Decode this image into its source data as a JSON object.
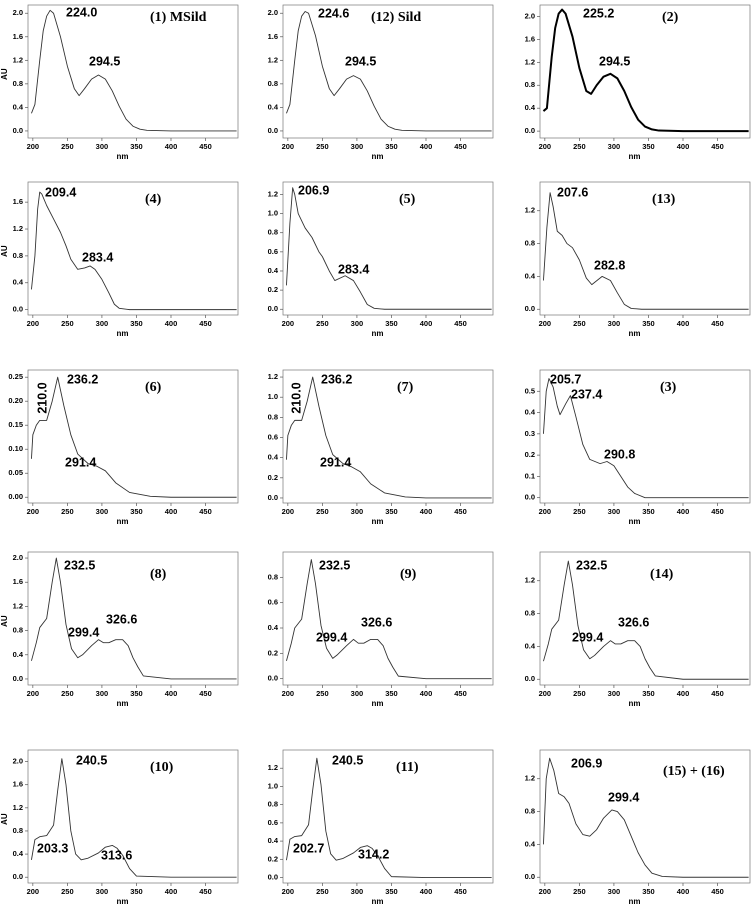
{
  "chart_data": [
    {
      "type": "line",
      "panel_label": "(1) MSild",
      "annotations": [
        "224.0",
        "294.5"
      ],
      "x_label": "nm",
      "y_label": "AU",
      "color": "#333333",
      "line_width": 0.9,
      "x": [
        198,
        203,
        210,
        215,
        220,
        225,
        230,
        240,
        250,
        260,
        267,
        275,
        285,
        295,
        305,
        315,
        325,
        335,
        345,
        355,
        365,
        400,
        450,
        495
      ],
      "values": [
        0.3,
        0.45,
        1.2,
        1.7,
        1.95,
        2.05,
        2.0,
        1.6,
        1.1,
        0.72,
        0.6,
        0.72,
        0.88,
        0.95,
        0.88,
        0.68,
        0.42,
        0.2,
        0.08,
        0.03,
        0.01,
        0,
        0,
        0
      ],
      "xlim": [
        193,
        497
      ],
      "xticks": [
        200,
        250,
        300,
        350,
        400,
        450
      ],
      "ylim": [
        -0.12,
        2.14
      ],
      "yticks": [
        {
          "value": 0,
          "label": "0.0"
        },
        0.4,
        0.8,
        1.2,
        1.6,
        {
          "value": 2,
          "label": "2.0"
        }
      ]
    },
    {
      "type": "line",
      "panel_label": "(12) Sild",
      "annotations": [
        "224.6",
        "294.5"
      ],
      "x_label": "nm",
      "color": "#333333",
      "line_width": 0.9,
      "x": [
        198,
        203,
        210,
        215,
        220,
        225,
        230,
        240,
        250,
        260,
        267,
        275,
        285,
        295,
        305,
        315,
        325,
        335,
        345,
        355,
        365,
        400,
        450,
        495
      ],
      "values": [
        0.3,
        0.45,
        1.2,
        1.7,
        1.95,
        2.03,
        2.0,
        1.62,
        1.1,
        0.72,
        0.6,
        0.72,
        0.88,
        0.94,
        0.88,
        0.68,
        0.42,
        0.2,
        0.08,
        0.03,
        0.01,
        0,
        0,
        0
      ],
      "xlim": [
        193,
        497
      ],
      "xticks": [
        200,
        250,
        300,
        350,
        400,
        450
      ],
      "ylim": [
        -0.12,
        2.14
      ],
      "yticks": [
        {
          "value": 0,
          "label": "0.0"
        },
        0.4,
        0.8,
        1.2,
        1.6,
        {
          "value": 2,
          "label": "2.0"
        }
      ]
    },
    {
      "type": "line",
      "panel_label": "(2)",
      "annotations": [
        "225.2",
        "294.5"
      ],
      "x_label": "nm",
      "color": "#000000",
      "line_width": 2,
      "x": [
        198,
        203,
        210,
        215,
        220,
        225,
        230,
        240,
        250,
        260,
        267,
        275,
        285,
        295,
        305,
        315,
        325,
        335,
        345,
        355,
        365,
        400,
        450,
        495
      ],
      "values": [
        0.35,
        0.4,
        1.3,
        1.8,
        2.05,
        2.12,
        2.05,
        1.65,
        1.1,
        0.7,
        0.65,
        0.8,
        0.95,
        1.0,
        0.92,
        0.7,
        0.42,
        0.2,
        0.08,
        0.03,
        0.01,
        0,
        0,
        0
      ],
      "xlim": [
        193,
        497
      ],
      "xticks": [
        200,
        250,
        300,
        350,
        400,
        450
      ],
      "ylim": [
        -0.12,
        2.2
      ],
      "yticks": [
        {
          "value": 0,
          "label": "0.0"
        },
        0.4,
        0.8,
        1.2,
        1.6,
        {
          "value": 2,
          "label": "2.0"
        }
      ]
    },
    {
      "type": "line",
      "panel_label": "(4)",
      "annotations": [
        "209.4",
        "283.4"
      ],
      "x_label": "nm",
      "y_label": "AU",
      "color": "#333333",
      "line_width": 0.9,
      "x": [
        198,
        203,
        207,
        210,
        213,
        220,
        230,
        240,
        248,
        255,
        265,
        275,
        283,
        290,
        300,
        310,
        318,
        325,
        340,
        400,
        495
      ],
      "values": [
        0.3,
        0.8,
        1.5,
        1.75,
        1.72,
        1.55,
        1.35,
        1.15,
        0.95,
        0.75,
        0.6,
        0.62,
        0.65,
        0.6,
        0.45,
        0.25,
        0.08,
        0.02,
        0,
        0,
        0
      ],
      "xlim": [
        193,
        497
      ],
      "xticks": [
        200,
        250,
        300,
        350,
        400,
        450
      ],
      "ylim": [
        -0.08,
        1.9
      ],
      "yticks": [
        {
          "value": 0,
          "label": "0.0"
        },
        0.4,
        0.8,
        1.2,
        1.6
      ]
    },
    {
      "type": "line",
      "panel_label": "(5)",
      "annotations": [
        "206.9",
        "283.4"
      ],
      "x_label": "nm",
      "color": "#333333",
      "line_width": 0.9,
      "x": [
        198,
        203,
        207,
        210,
        215,
        225,
        235,
        245,
        250,
        260,
        268,
        283,
        295,
        305,
        315,
        325,
        340,
        400,
        495
      ],
      "values": [
        0.25,
        0.9,
        1.27,
        1.2,
        1.0,
        0.85,
        0.75,
        0.6,
        0.55,
        0.4,
        0.3,
        0.35,
        0.3,
        0.18,
        0.05,
        0.01,
        0,
        0,
        0
      ],
      "xlim": [
        193,
        497
      ],
      "xticks": [
        200,
        250,
        300,
        350,
        400,
        450
      ],
      "ylim": [
        -0.06,
        1.33
      ],
      "yticks": [
        {
          "value": 0,
          "label": "0.0"
        },
        0.2,
        0.4,
        0.6,
        0.8,
        {
          "value": 1,
          "label": "1.0"
        },
        1.2
      ]
    },
    {
      "type": "line",
      "panel_label": "(13)",
      "annotations": [
        "207.6",
        "282.8"
      ],
      "x_label": "nm",
      "color": "#333333",
      "line_width": 0.9,
      "x": [
        198,
        203,
        207.6,
        212,
        218,
        225,
        232,
        240,
        250,
        260,
        268,
        283,
        295,
        305,
        315,
        325,
        340,
        400,
        495
      ],
      "values": [
        0.35,
        1.0,
        1.42,
        1.25,
        0.95,
        0.9,
        0.8,
        0.75,
        0.6,
        0.38,
        0.3,
        0.4,
        0.35,
        0.2,
        0.06,
        0.01,
        0,
        0,
        0
      ],
      "xlim": [
        193,
        497
      ],
      "xticks": [
        200,
        250,
        300,
        350,
        400,
        450
      ],
      "ylim": [
        -0.07,
        1.55
      ],
      "yticks": [
        {
          "value": 0,
          "label": "0.0"
        },
        0.4,
        0.8,
        1.2
      ]
    },
    {
      "type": "line",
      "panel_label": "(6)",
      "annotations": [
        "210.0",
        "236.2",
        "291.4"
      ],
      "x_label": "nm",
      "color": "#333333",
      "line_width": 0.9,
      "x": [
        198,
        200,
        205,
        210,
        220,
        228,
        236,
        245,
        255,
        265,
        280,
        292,
        305,
        320,
        340,
        370,
        400,
        495
      ],
      "values": [
        0.08,
        0.13,
        0.15,
        0.16,
        0.16,
        0.2,
        0.25,
        0.19,
        0.13,
        0.09,
        0.07,
        0.065,
        0.055,
        0.03,
        0.01,
        0.002,
        0,
        0
      ],
      "xlim": [
        193,
        497
      ],
      "xticks": [
        200,
        250,
        300,
        350,
        400,
        450
      ],
      "ylim": [
        -0.012,
        0.265
      ],
      "yticks": [
        {
          "value": 0,
          "label": "0.00"
        },
        0.05,
        {
          "value": 0.1,
          "label": "0.10"
        },
        0.15,
        {
          "value": 0.2,
          "label": "0.20"
        },
        0.25
      ]
    },
    {
      "type": "line",
      "panel_label": "(7)",
      "annotations": [
        "210.0",
        "236.2",
        "291.4"
      ],
      "x_label": "nm",
      "color": "#333333",
      "line_width": 0.9,
      "x": [
        198,
        200,
        205,
        210,
        220,
        228,
        236,
        245,
        255,
        265,
        280,
        292,
        305,
        320,
        340,
        370,
        400,
        495
      ],
      "values": [
        0.38,
        0.62,
        0.72,
        0.77,
        0.77,
        0.96,
        1.2,
        0.91,
        0.62,
        0.43,
        0.34,
        0.31,
        0.26,
        0.14,
        0.05,
        0.01,
        0,
        0
      ],
      "xlim": [
        193,
        497
      ],
      "xticks": [
        200,
        250,
        300,
        350,
        400,
        450
      ],
      "ylim": [
        -0.05,
        1.27
      ],
      "yticks": [
        {
          "value": 0,
          "label": "0.0"
        },
        0.2,
        0.4,
        0.6,
        0.8,
        {
          "value": 1,
          "label": "1.0"
        },
        1.2
      ]
    },
    {
      "type": "line",
      "panel_label": "(3)",
      "annotations": [
        "205.7",
        "237.4",
        "290.8"
      ],
      "x_label": "nm",
      "color": "#333333",
      "line_width": 0.9,
      "x": [
        198,
        202,
        206,
        212,
        218,
        222,
        230,
        237,
        245,
        255,
        265,
        280,
        290,
        300,
        310,
        320,
        330,
        345,
        400,
        495
      ],
      "values": [
        0.3,
        0.5,
        0.56,
        0.52,
        0.43,
        0.39,
        0.44,
        0.48,
        0.38,
        0.25,
        0.18,
        0.16,
        0.17,
        0.15,
        0.1,
        0.05,
        0.02,
        0,
        0,
        0
      ],
      "xlim": [
        193,
        497
      ],
      "xticks": [
        200,
        250,
        300,
        350,
        400,
        450
      ],
      "ylim": [
        -0.025,
        0.6
      ],
      "yticks": [
        {
          "value": 0,
          "label": "0.0"
        },
        0.1,
        0.2,
        0.3,
        0.4,
        0.5
      ]
    },
    {
      "type": "line",
      "panel_label": "(8)",
      "annotations": [
        "232.5",
        "326.6",
        "299.4"
      ],
      "x_label": "nm",
      "y_label": "AU",
      "color": "#333333",
      "line_width": 0.9,
      "x": [
        198,
        205,
        210,
        220,
        228,
        234,
        240,
        248,
        256,
        265,
        272,
        285,
        295,
        302,
        310,
        320,
        330,
        338,
        345,
        352,
        360,
        400,
        495
      ],
      "values": [
        0.3,
        0.6,
        0.85,
        1.0,
        1.6,
        2.0,
        1.6,
        0.9,
        0.5,
        0.35,
        0.4,
        0.55,
        0.65,
        0.6,
        0.6,
        0.65,
        0.65,
        0.55,
        0.35,
        0.2,
        0.05,
        0,
        0
      ],
      "xlim": [
        193,
        497
      ],
      "xticks": [
        200,
        250,
        300,
        350,
        400,
        450
      ],
      "ylim": [
        -0.1,
        2.1
      ],
      "yticks": [
        {
          "value": 0,
          "label": "0.0"
        },
        0.4,
        0.8,
        1.2,
        1.6,
        {
          "value": 2,
          "label": "2.0"
        }
      ]
    },
    {
      "type": "line",
      "panel_label": "(9)",
      "annotations": [
        "232.5",
        "326.6",
        "299.4"
      ],
      "x_label": "nm",
      "color": "#333333",
      "line_width": 0.9,
      "x": [
        198,
        205,
        210,
        220,
        228,
        234,
        240,
        248,
        256,
        265,
        272,
        285,
        295,
        302,
        310,
        320,
        330,
        338,
        345,
        352,
        360,
        400,
        495
      ],
      "values": [
        0.14,
        0.28,
        0.4,
        0.47,
        0.75,
        0.94,
        0.75,
        0.42,
        0.24,
        0.16,
        0.19,
        0.26,
        0.31,
        0.28,
        0.28,
        0.31,
        0.31,
        0.26,
        0.16,
        0.09,
        0.02,
        0,
        0
      ],
      "xlim": [
        193,
        497
      ],
      "xticks": [
        200,
        250,
        300,
        350,
        400,
        450
      ],
      "ylim": [
        -0.05,
        1.0
      ],
      "yticks": [
        {
          "value": 0,
          "label": "0.0"
        },
        0.2,
        0.4,
        0.6,
        0.8
      ]
    },
    {
      "type": "line",
      "panel_label": "(14)",
      "annotations": [
        "232.5",
        "326.6",
        "299.4"
      ],
      "x_label": "nm",
      "color": "#333333",
      "line_width": 0.9,
      "x": [
        198,
        205,
        210,
        220,
        228,
        234,
        240,
        248,
        256,
        265,
        272,
        285,
        295,
        302,
        310,
        320,
        330,
        338,
        345,
        352,
        360,
        400,
        495
      ],
      "values": [
        0.22,
        0.43,
        0.61,
        0.72,
        1.15,
        1.44,
        1.15,
        0.65,
        0.36,
        0.25,
        0.29,
        0.4,
        0.47,
        0.43,
        0.43,
        0.47,
        0.47,
        0.4,
        0.25,
        0.14,
        0.04,
        0,
        0
      ],
      "xlim": [
        193,
        497
      ],
      "xticks": [
        200,
        250,
        300,
        350,
        400,
        450
      ],
      "ylim": [
        -0.07,
        1.55
      ],
      "yticks": [
        {
          "value": 0,
          "label": "0.0"
        },
        0.4,
        0.8,
        1.2
      ]
    },
    {
      "type": "line",
      "panel_label": "(10)",
      "annotations": [
        "240.5",
        "203.3",
        "313.6"
      ],
      "x_label": "nm",
      "y_label": "AU",
      "color": "#333333",
      "line_width": 0.9,
      "x": [
        198,
        203,
        210,
        220,
        230,
        236,
        242,
        248,
        255,
        262,
        270,
        280,
        295,
        305,
        315,
        322,
        330,
        340,
        350,
        400,
        495
      ],
      "values": [
        0.3,
        0.65,
        0.7,
        0.72,
        0.9,
        1.5,
        2.05,
        1.6,
        0.8,
        0.4,
        0.3,
        0.33,
        0.42,
        0.52,
        0.55,
        0.5,
        0.38,
        0.15,
        0.02,
        0,
        0
      ],
      "xlim": [
        193,
        497
      ],
      "xticks": [
        200,
        250,
        300,
        350,
        400,
        450
      ],
      "ylim": [
        -0.1,
        2.2
      ],
      "yticks": [
        {
          "value": 0,
          "label": "0.0"
        },
        0.4,
        0.8,
        1.2,
        1.6,
        {
          "value": 2,
          "label": "2.0"
        }
      ]
    },
    {
      "type": "line",
      "panel_label": "(11)",
      "annotations": [
        "240.5",
        "202.7",
        "314.2"
      ],
      "x_label": "nm",
      "color": "#333333",
      "line_width": 0.9,
      "x": [
        198,
        203,
        210,
        220,
        230,
        236,
        242,
        248,
        255,
        262,
        270,
        280,
        295,
        305,
        315,
        322,
        330,
        340,
        350,
        400,
        495
      ],
      "values": [
        0.19,
        0.42,
        0.45,
        0.46,
        0.58,
        0.96,
        1.31,
        1.02,
        0.51,
        0.26,
        0.19,
        0.21,
        0.27,
        0.33,
        0.35,
        0.32,
        0.24,
        0.1,
        0.01,
        0,
        0
      ],
      "xlim": [
        193,
        497
      ],
      "xticks": [
        200,
        250,
        300,
        350,
        400,
        450
      ],
      "ylim": [
        -0.06,
        1.4
      ],
      "yticks": [
        {
          "value": 0,
          "label": "0.0"
        },
        0.2,
        0.4,
        0.6,
        0.8,
        {
          "value": 1,
          "label": "1.0"
        },
        1.2
      ]
    },
    {
      "type": "line",
      "panel_label": "(15) + (16)",
      "annotations": [
        "206.9",
        "299.4"
      ],
      "x_label": "nm",
      "color": "#333333",
      "line_width": 0.9,
      "x": [
        198,
        202,
        207,
        213,
        220,
        228,
        235,
        245,
        255,
        265,
        275,
        285,
        297,
        305,
        315,
        325,
        335,
        345,
        355,
        370,
        400,
        495
      ],
      "values": [
        0.4,
        1.2,
        1.45,
        1.3,
        1.02,
        0.98,
        0.9,
        0.65,
        0.52,
        0.5,
        0.58,
        0.72,
        0.82,
        0.8,
        0.7,
        0.5,
        0.3,
        0.15,
        0.05,
        0.01,
        0,
        0
      ],
      "xlim": [
        193,
        497
      ],
      "xticks": [
        200,
        250,
        300,
        350,
        400,
        450
      ],
      "ylim": [
        -0.07,
        1.55
      ],
      "yticks": [
        {
          "value": 0,
          "label": "0.0"
        },
        0.4,
        0.8,
        1.2
      ]
    }
  ]
}
